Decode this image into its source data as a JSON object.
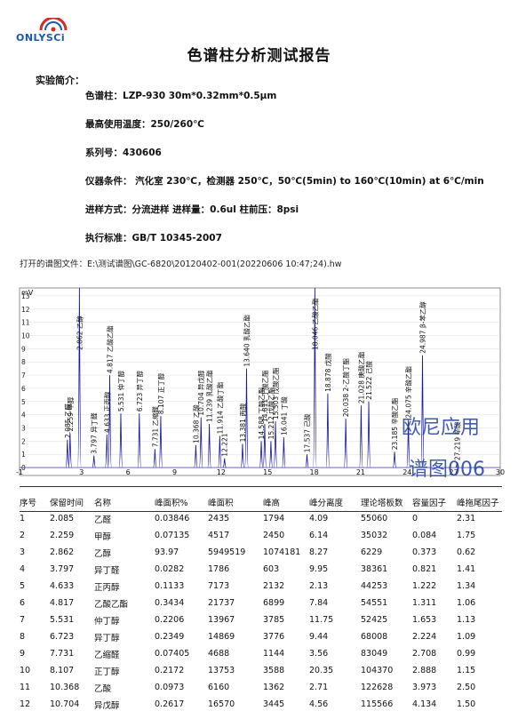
{
  "logo": {
    "text": "ONLYSCi"
  },
  "report_title": "色谱柱分析测试报告",
  "intro_label": "实验简介：",
  "info": [
    "色谱柱：LZP-930  30m*0.32mm*0.5μm",
    "最高使用温度：250/260℃",
    "系列号：430606",
    "仪器条件：  汽化室 230℃，检测器 250℃，50℃(5min) to 160℃(10min) at 6℃/min",
    "进样方式：分流进样       进样量：0.6ul       柱前压：8psi",
    "执行标准：GB/T 10345-2007"
  ],
  "file_path": "打开的谱图文件：E:\\测试谱图\\GC-6820\\20120402-001(20220606 10:47;24).hw",
  "chart_data": {
    "type": "line",
    "ylabel": "mV",
    "yticks": [
      "0",
      "1",
      "2",
      "3",
      "4",
      "5",
      "6",
      "7",
      "8",
      "9",
      "10",
      "11",
      "12",
      "13"
    ],
    "xticks": [
      "-1",
      "3",
      "6",
      "9",
      "12",
      "15",
      "18",
      "21",
      "24",
      "27",
      "30"
    ],
    "xlim": [
      -1,
      30
    ],
    "ylim": [
      -0.6,
      13.6
    ],
    "colors": {
      "trace": "#1a1aa0",
      "label": "#111111"
    },
    "peaks": [
      {
        "rt": 2.085,
        "label": "2.085 乙醛",
        "h": 2.1
      },
      {
        "rt": 2.259,
        "label": "2.259 甲醇",
        "h": 2.6
      },
      {
        "rt": 2.862,
        "label": "2.862 乙醇",
        "h": 13.6
      },
      {
        "rt": 3.797,
        "label": "3.797 异丁醛",
        "h": 0.9
      },
      {
        "rt": 4.633,
        "label": "4.633 正丙醇",
        "h": 2.5
      },
      {
        "rt": 4.817,
        "label": "4.817 乙酸乙酯",
        "h": 7.0
      },
      {
        "rt": 5.531,
        "label": "5.531 仲丁醇",
        "h": 4.1
      },
      {
        "rt": 6.723,
        "label": "6.723 异丁醇",
        "h": 4.1
      },
      {
        "rt": 7.731,
        "label": "7.731 乙缩醛",
        "h": 1.4
      },
      {
        "rt": 8.107,
        "label": "8.107 正丁醇",
        "h": 3.9
      },
      {
        "rt": 10.368,
        "label": "10.368 乙酸",
        "h": 1.7
      },
      {
        "rt": 10.704,
        "label": "10.704 异戊醇",
        "h": 3.8
      },
      {
        "rt": 11.239,
        "label": "11.239 乳酸乙酯",
        "h": 3.3
      },
      {
        "rt": 11.914,
        "label": "11.914 乙酸丁酯",
        "h": 2.4
      },
      {
        "rt": 12.221,
        "label": "12.221",
        "h": 0.7
      },
      {
        "rt": 13.381,
        "label": "13.381 丙酸",
        "h": 1.8
      },
      {
        "rt": 13.64,
        "label": "13.640 乳酸乙酯",
        "h": 7.5
      },
      {
        "rt": 14.588,
        "label": "14.588 丁酸乙酯",
        "h": 2.0
      },
      {
        "rt": 14.811,
        "label": "14.811 丁酸乙酯",
        "h": 3.3
      },
      {
        "rt": 15.212,
        "label": "15.212 戊酸乙酯",
        "h": 2.0
      },
      {
        "rt": 15.503,
        "label": "15.503 戊酸乙酯",
        "h": 3.5
      },
      {
        "rt": 16.041,
        "label": "16.041 丁酸",
        "h": 2.3
      },
      {
        "rt": 17.537,
        "label": "17.537 己酸",
        "h": 1.0
      },
      {
        "rt": 18.046,
        "label": "18.046 乙酸乙酯",
        "h": 13.6
      },
      {
        "rt": 18.878,
        "label": "18.878 戊酸",
        "h": 5.6
      },
      {
        "rt": 20.038,
        "label": "20.038 2-乙酸丁酯",
        "h": 3.7
      },
      {
        "rt": 21.028,
        "label": "21.028 庚酸乙酯",
        "h": 4.7
      },
      {
        "rt": 21.522,
        "label": "21.522 己酸",
        "h": 5.0
      },
      {
        "rt": 23.185,
        "label": "23.185 辛酸乙酯",
        "h": 1.2
      },
      {
        "rt": 24.075,
        "label": "24.075 辛酸乙酯",
        "h": 3.6
      },
      {
        "rt": 24.987,
        "label": "24.987 β-苯乙醇",
        "h": 8.5
      },
      {
        "rt": 27.219,
        "label": "27.219 辛酸",
        "h": 0.4
      }
    ]
  },
  "watermark": {
    "line1": "欧尼应用",
    "line2": "谱图006"
  },
  "table": {
    "headers": [
      "序号",
      "保留时间",
      "名称",
      "峰面积%",
      "峰面积",
      "峰高",
      "峰分离度",
      "理论塔板数",
      "容量因子",
      "峰拖尾因子"
    ],
    "rows": [
      [
        "1",
        "2.085",
        "乙醛",
        "0.03846",
        "2435",
        "1794",
        "4.09",
        "55060",
        "0",
        "2.31"
      ],
      [
        "2",
        "2.259",
        "甲醇",
        "0.07135",
        "4517",
        "2450",
        "6.14",
        "35032",
        "0.084",
        "1.75"
      ],
      [
        "3",
        "2.862",
        "乙醇",
        "93.97",
        "5949519",
        "1074181",
        "8.27",
        "6229",
        "0.373",
        "0.62"
      ],
      [
        "4",
        "3.797",
        "异丁醛",
        "0.0282",
        "1786",
        "603",
        "9.95",
        "38361",
        "0.821",
        "1.41"
      ],
      [
        "5",
        "4.633",
        "正丙醇",
        "0.1133",
        "7173",
        "2132",
        "2.13",
        "44253",
        "1.222",
        "1.34"
      ],
      [
        "6",
        "4.817",
        "乙酸乙酯",
        "0.3434",
        "21737",
        "6899",
        "7.84",
        "54551",
        "1.311",
        "1.06"
      ],
      [
        "7",
        "5.531",
        "仲丁醇",
        "0.2206",
        "13967",
        "3785",
        "11.75",
        "52425",
        "1.653",
        "1.13"
      ],
      [
        "8",
        "6.723",
        "异丁醇",
        "0.2349",
        "14869",
        "3776",
        "9.44",
        "68008",
        "2.224",
        "1.09"
      ],
      [
        "9",
        "7.731",
        "乙缩醛",
        "0.07405",
        "4688",
        "1144",
        "3.56",
        "83049",
        "2.708",
        "0.99"
      ],
      [
        "10",
        "8.107",
        "正丁醇",
        "0.2172",
        "13753",
        "3588",
        "20.35",
        "104370",
        "2.888",
        "1.15"
      ],
      [
        "11",
        "10.368",
        "乙酸",
        "0.0973",
        "6160",
        "1362",
        "2.71",
        "122628",
        "3.973",
        "2.50"
      ],
      [
        "12",
        "10.704",
        "异戊醇",
        "0.2617",
        "16570",
        "3445",
        "4.56",
        "115566",
        "4.134",
        "1.50"
      ]
    ]
  }
}
